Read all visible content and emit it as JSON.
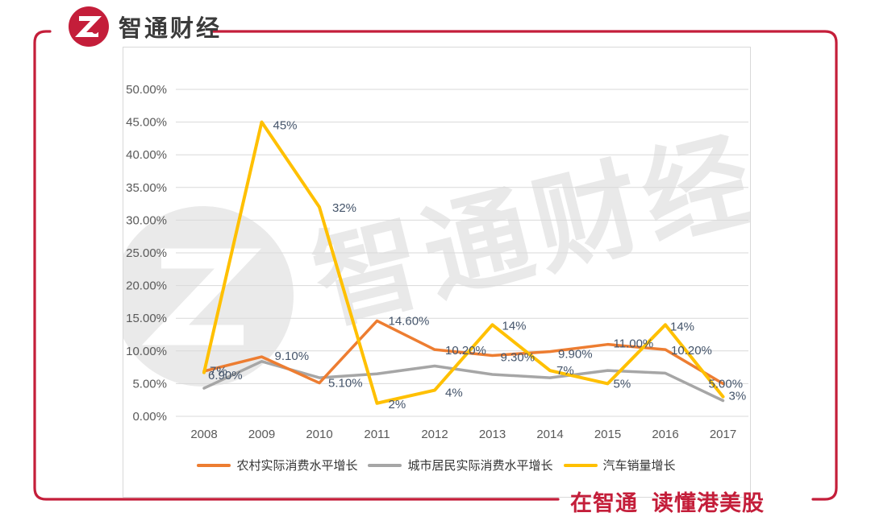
{
  "brand": {
    "logo_text": "智通财经",
    "tagline": "在智通  读懂港美股",
    "red": "#C41E3A"
  },
  "watermark": {
    "text": "智通财经"
  },
  "chart_data": {
    "type": "line",
    "title": "",
    "xlabel": "",
    "ylabel": "",
    "categories": [
      "2008",
      "2009",
      "2010",
      "2011",
      "2012",
      "2013",
      "2014",
      "2015",
      "2016",
      "2017"
    ],
    "series": [
      {
        "name": "农村实际消费水平增长",
        "color": "#ED7D31",
        "values": [
          6.9,
          9.1,
          5.1,
          14.6,
          10.2,
          9.3,
          9.9,
          11.0,
          10.2,
          5.0
        ],
        "labels": [
          "6.90%",
          "9.10%",
          "5.10%",
          "14.60%",
          "10.20%",
          "9.30%",
          "9.90%",
          "11.00%",
          "10.20%",
          "5.00%"
        ],
        "label_offsets": [
          [
            5,
            10
          ],
          [
            16,
            4
          ],
          [
            11,
            5
          ],
          [
            14,
            5
          ],
          [
            13,
            6
          ],
          [
            10,
            7
          ],
          [
            10,
            8
          ],
          [
            7,
            4
          ],
          [
            7,
            6
          ],
          [
            -18,
            5
          ]
        ]
      },
      {
        "name": "城市居民实际消费水平增长",
        "color": "#A6A6A6",
        "values": [
          4.3,
          8.4,
          5.9,
          6.5,
          7.7,
          6.4,
          5.9,
          7.0,
          6.6,
          2.4
        ],
        "labels": null,
        "label_offsets": null
      },
      {
        "name": "汽车销量增长",
        "color": "#FFC000",
        "values": [
          6.7,
          45,
          32,
          2,
          4,
          14,
          7,
          5,
          14,
          3
        ],
        "labels": [
          "7%",
          "45%",
          "32%",
          "2%",
          "4%",
          "14%",
          "7%",
          "5%",
          "14%",
          "3%"
        ],
        "label_offsets": [
          [
            7,
            3
          ],
          [
            14,
            9
          ],
          [
            16,
            6
          ],
          [
            14,
            6
          ],
          [
            13,
            8
          ],
          [
            12,
            6
          ],
          [
            8,
            5
          ],
          [
            7,
            5
          ],
          [
            6,
            7
          ],
          [
            7,
            4
          ]
        ]
      }
    ],
    "ylim": [
      0,
      50
    ],
    "ytick_step": 5,
    "ytick_format": "0.00%",
    "grid": true,
    "legend_position": "bottom",
    "colors": {
      "gridline": "#D9D9D9",
      "chart_border": "#D9D9D9",
      "axis_text": "#595959",
      "data_label_text": "#44546A"
    }
  }
}
